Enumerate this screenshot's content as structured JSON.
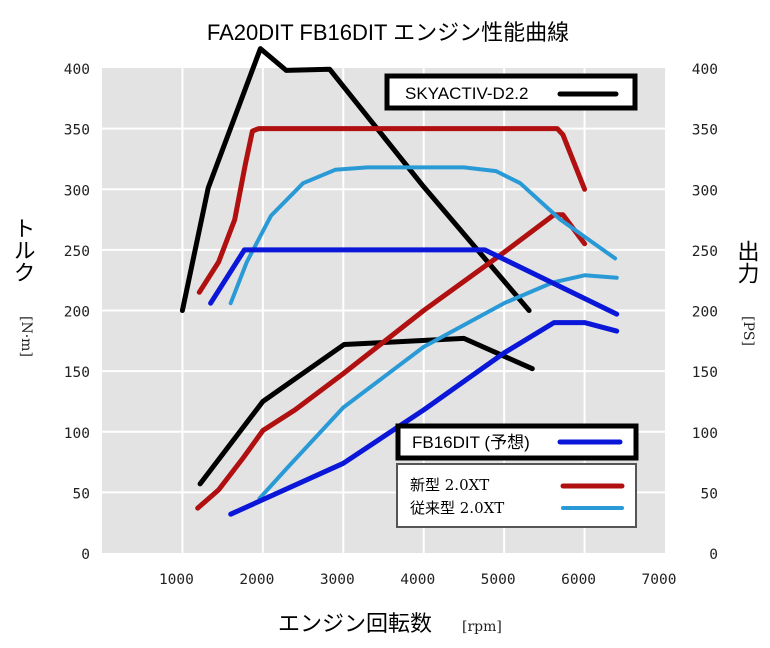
{
  "chart_data": {
    "type": "line",
    "title": "FA20DIT FB16DIT エンジン性能曲線",
    "xlabel": "エンジン回転数",
    "xlabel_unit": "[rpm]",
    "ylabel_left": "トルク",
    "ylabel_left_unit": "[N·m]",
    "ylabel_right": "出力",
    "ylabel_right_unit": "[PS]",
    "xlim": [
      0,
      7000
    ],
    "ylim": [
      0,
      400
    ],
    "x_ticks": [
      "1000",
      "2000",
      "3000",
      "4000",
      "5000",
      "6000",
      "7000"
    ],
    "y_ticks_left": [
      "0",
      "50",
      "100",
      "150",
      "200",
      "250",
      "300",
      "350",
      "400"
    ],
    "y_ticks_right": [
      "0",
      "50",
      "100",
      "150",
      "200",
      "250",
      "300",
      "350",
      "400"
    ],
    "grid": true,
    "plot_background": "#e3e3e3",
    "legend": [
      {
        "label": "SKYACTIV-D2.2",
        "color": "#000000",
        "boxed": true
      },
      {
        "label": "FB16DIT (予想)",
        "color": "#0a16d8",
        "boxed": true
      },
      {
        "label": "新型 2.0XT",
        "color": "#b01010"
      },
      {
        "label": "従来型 2.0XT",
        "color": "#2a9ad6"
      }
    ],
    "series": [
      {
        "name": "SKYACTIV-D2.2 トルク",
        "color": "#000000",
        "axis": "left",
        "points": [
          [
            1000,
            200
          ],
          [
            1320,
            301
          ],
          [
            1970,
            416
          ],
          [
            2290,
            398
          ],
          [
            2830,
            399
          ],
          [
            4000,
            302
          ],
          [
            5310,
            200
          ]
        ]
      },
      {
        "name": "SKYACTIV-D2.2 出力",
        "color": "#000000",
        "axis": "right",
        "points": [
          [
            1220,
            57
          ],
          [
            2000,
            125
          ],
          [
            3010,
            172
          ],
          [
            4500,
            177
          ],
          [
            5350,
            152
          ]
        ]
      },
      {
        "name": "新型 2.0XT トルク",
        "color": "#b01010",
        "axis": "left",
        "points": [
          [
            1210,
            215
          ],
          [
            1450,
            240
          ],
          [
            1650,
            275
          ],
          [
            1780,
            320
          ],
          [
            1870,
            348
          ],
          [
            1950,
            350
          ],
          [
            5660,
            350
          ],
          [
            5730,
            345
          ],
          [
            6000,
            300
          ]
        ]
      },
      {
        "name": "新型 2.0XT 出力",
        "color": "#b01010",
        "axis": "right",
        "points": [
          [
            1190,
            37
          ],
          [
            1450,
            52
          ],
          [
            1750,
            78
          ],
          [
            2000,
            101
          ],
          [
            2400,
            118
          ],
          [
            3000,
            148
          ],
          [
            4000,
            200
          ],
          [
            5000,
            248
          ],
          [
            5620,
            279
          ],
          [
            5730,
            279
          ],
          [
            6000,
            255
          ]
        ]
      },
      {
        "name": "従来型 2.0XT トルク",
        "color": "#2a9ad6",
        "axis": "left",
        "points": [
          [
            1600,
            206
          ],
          [
            1800,
            240
          ],
          [
            2100,
            278
          ],
          [
            2500,
            305
          ],
          [
            2900,
            316
          ],
          [
            3300,
            318
          ],
          [
            4500,
            318
          ],
          [
            4900,
            315
          ],
          [
            5200,
            305
          ],
          [
            5700,
            275
          ],
          [
            6380,
            243
          ]
        ]
      },
      {
        "name": "従来型 2.0XT 出力",
        "color": "#2a9ad6",
        "axis": "right",
        "points": [
          [
            1960,
            45
          ],
          [
            2300,
            70
          ],
          [
            3000,
            120
          ],
          [
            3500,
            145
          ],
          [
            4000,
            170
          ],
          [
            5000,
            206
          ],
          [
            5600,
            223
          ],
          [
            6000,
            229
          ],
          [
            6400,
            227
          ]
        ]
      },
      {
        "name": "FB16DIT (予想) トルク",
        "color": "#0a16d8",
        "axis": "left",
        "points": [
          [
            1350,
            206
          ],
          [
            1770,
            250
          ],
          [
            4760,
            250
          ],
          [
            6400,
            197
          ]
        ]
      },
      {
        "name": "FB16DIT (予想) 出力",
        "color": "#0a16d8",
        "axis": "right",
        "points": [
          [
            1600,
            32
          ],
          [
            3000,
            74
          ],
          [
            4000,
            118
          ],
          [
            5000,
            165
          ],
          [
            5620,
            190
          ],
          [
            6000,
            190
          ],
          [
            6400,
            183
          ]
        ]
      }
    ]
  }
}
